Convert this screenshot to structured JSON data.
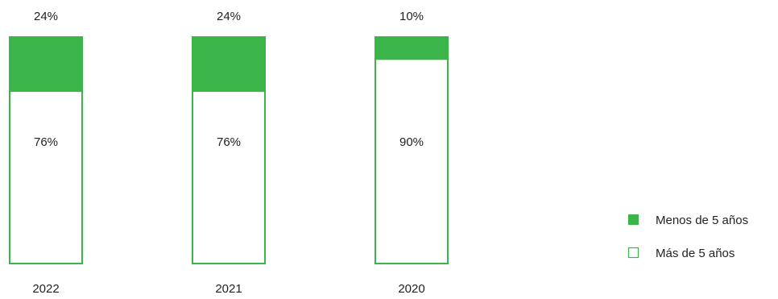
{
  "chart_data": {
    "type": "bar",
    "stacked": true,
    "categories": [
      "2022",
      "2021",
      "2020"
    ],
    "series": [
      {
        "name": "Menos de 5 años",
        "values": [
          24,
          24,
          10
        ],
        "labels": [
          "24%",
          "24%",
          "10%"
        ],
        "color": "#3bb54a",
        "fill": "solid"
      },
      {
        "name": "Más de 5 años",
        "values": [
          76,
          76,
          90
        ],
        "labels": [
          "76%",
          "76%",
          "90%"
        ],
        "color": "#3bb54a",
        "fill": "outline"
      }
    ],
    "ylim": [
      0,
      100
    ],
    "grid": false,
    "legend_position": "bottom-right"
  }
}
